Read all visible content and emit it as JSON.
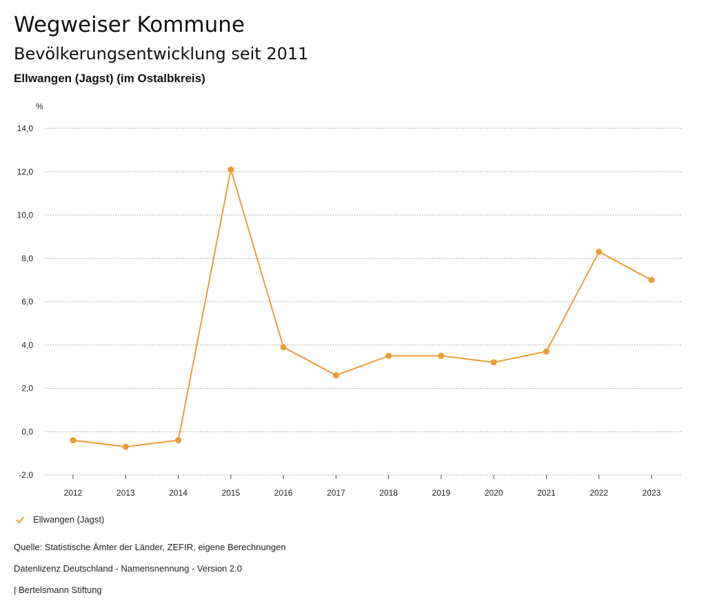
{
  "header": {
    "title": "Wegweiser Kommune",
    "subtitle": "Bevölkerungsentwicklung seit 2011",
    "region": "Ellwangen (Jagst) (im Ostalbkreis)"
  },
  "chart_data": {
    "type": "line",
    "unit_label": "%",
    "x": [
      "2012",
      "2013",
      "2014",
      "2015",
      "2016",
      "2017",
      "2018",
      "2019",
      "2020",
      "2021",
      "2022",
      "2023"
    ],
    "series": [
      {
        "name": "Ellwangen (Jagst)",
        "color": "#ED9B33",
        "values": [
          -0.4,
          -0.7,
          -0.4,
          12.1,
          3.9,
          2.6,
          3.5,
          3.5,
          3.2,
          3.7,
          8.3,
          7.0
        ]
      }
    ],
    "ylim": [
      -2.0,
      14.0
    ],
    "yticks": [
      "14,0",
      "12,0",
      "10,0",
      "8,0",
      "6,0",
      "4,0",
      "2,0",
      "0,0",
      "-2,0"
    ],
    "ytick_values": [
      14,
      12,
      10,
      8,
      6,
      4,
      2,
      0,
      -2
    ],
    "grid": true,
    "legend_position": "bottom-left"
  },
  "legend": {
    "label": "Ellwangen (Jagst)",
    "icon": "check-icon",
    "color": "#ED9B33"
  },
  "footer": {
    "source": "Quelle: Statistische Ämter der Länder, ZEFIR, eigene Berechnungen",
    "license": "Datenlizenz Deutschland - Namensnennung - Version 2.0",
    "publisher": "| Bertelsmann Stiftung"
  }
}
